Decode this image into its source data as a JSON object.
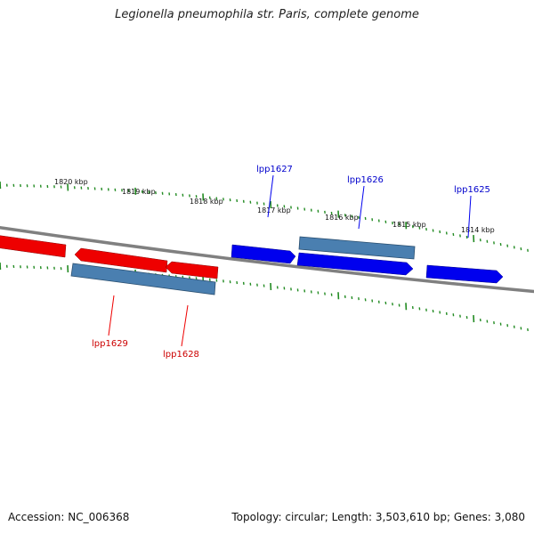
{
  "title": "Legionella pneumophila str. Paris, complete genome",
  "footer": {
    "accession": "Accession: NC_006368",
    "summary": "Topology: circular; Length: 3,503,610 bp; Genes: 3,080"
  },
  "colors": {
    "forward_gene": "#0000ee",
    "reverse_gene": "#ee0000",
    "cds_bar": "#4a7fb0",
    "backbone": "#808080",
    "tick": "#228b22"
  },
  "scale_labels": [
    {
      "kbp": 1820,
      "text": "1820 kbp"
    },
    {
      "kbp": 1819,
      "text": "1819 kbp"
    },
    {
      "kbp": 1818,
      "text": "1818 kbp"
    },
    {
      "kbp": 1817,
      "text": "1817 kbp"
    },
    {
      "kbp": 1816,
      "text": "1816 kbp"
    },
    {
      "kbp": 1815,
      "text": "1815 kbp"
    },
    {
      "kbp": 1814,
      "text": "1814 kbp"
    }
  ],
  "gene_labels": [
    {
      "name": "lpp1627",
      "strand": "forward"
    },
    {
      "name": "lpp1626",
      "strand": "forward"
    },
    {
      "name": "lpp1625",
      "strand": "forward"
    },
    {
      "name": "lpp1629",
      "strand": "reverse"
    },
    {
      "name": "lpp1628",
      "strand": "reverse"
    }
  ]
}
